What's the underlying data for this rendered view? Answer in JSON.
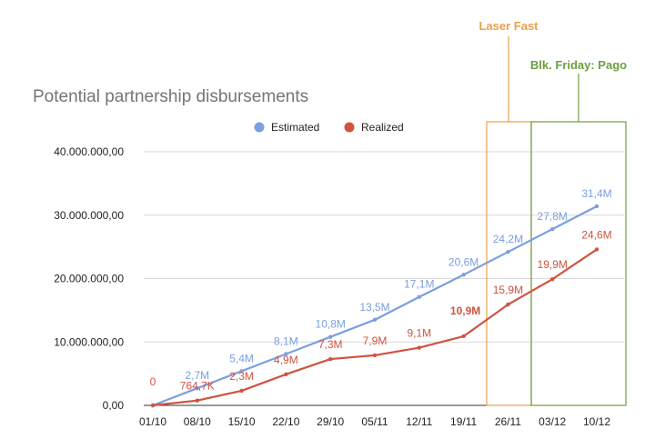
{
  "chart_data": {
    "type": "line",
    "title": "Potential partnership disbursements",
    "xlabel": "",
    "ylabel": "",
    "categories": [
      "01/10",
      "08/10",
      "15/10",
      "22/10",
      "29/10",
      "05/11",
      "12/11",
      "19/11",
      "26/11",
      "03/12",
      "10/12"
    ],
    "ylim": [
      0,
      40000000
    ],
    "yticks": [
      {
        "value": 0,
        "label": "0,00"
      },
      {
        "value": 10000000,
        "label": "10.000.000,00"
      },
      {
        "value": 20000000,
        "label": "20.000.000,00"
      },
      {
        "value": 30000000,
        "label": "30.000.000,00"
      },
      {
        "value": 40000000,
        "label": "40.000.000,00"
      }
    ],
    "grid": true,
    "legend_position": "top",
    "series": [
      {
        "name": "Estimated",
        "color": "#7b9fe0",
        "values": [
          0,
          2700000,
          5400000,
          8100000,
          10800000,
          13500000,
          17100000,
          20600000,
          24200000,
          27800000,
          31400000
        ],
        "labels": [
          "",
          "2,7M",
          "5,4M",
          "8,1M",
          "10,8M",
          "13,5M",
          "17,1M",
          "20,6M",
          "24,2M",
          "27,8M",
          "31,4M"
        ]
      },
      {
        "name": "Realized",
        "color": "#d0533f",
        "values": [
          0,
          764700,
          2300000,
          4900000,
          7300000,
          7900000,
          9100000,
          10900000,
          15900000,
          19900000,
          24600000
        ],
        "labels": [
          "0",
          "764,7K",
          "2,3M",
          "4,9M",
          "7,3M",
          "7,9M",
          "9,1M",
          "10,9M",
          "15,9M",
          "19,9M",
          "24,6M"
        ],
        "highlight_index": 7
      }
    ],
    "annotations": [
      {
        "label": "Laser Fast",
        "color": "#e8a04a",
        "span": [
          "26/11",
          "26/11"
        ]
      },
      {
        "label": "Blk. Friday: Pago",
        "color": "#6aa040",
        "span": [
          "03/12",
          "10/12"
        ]
      }
    ]
  }
}
